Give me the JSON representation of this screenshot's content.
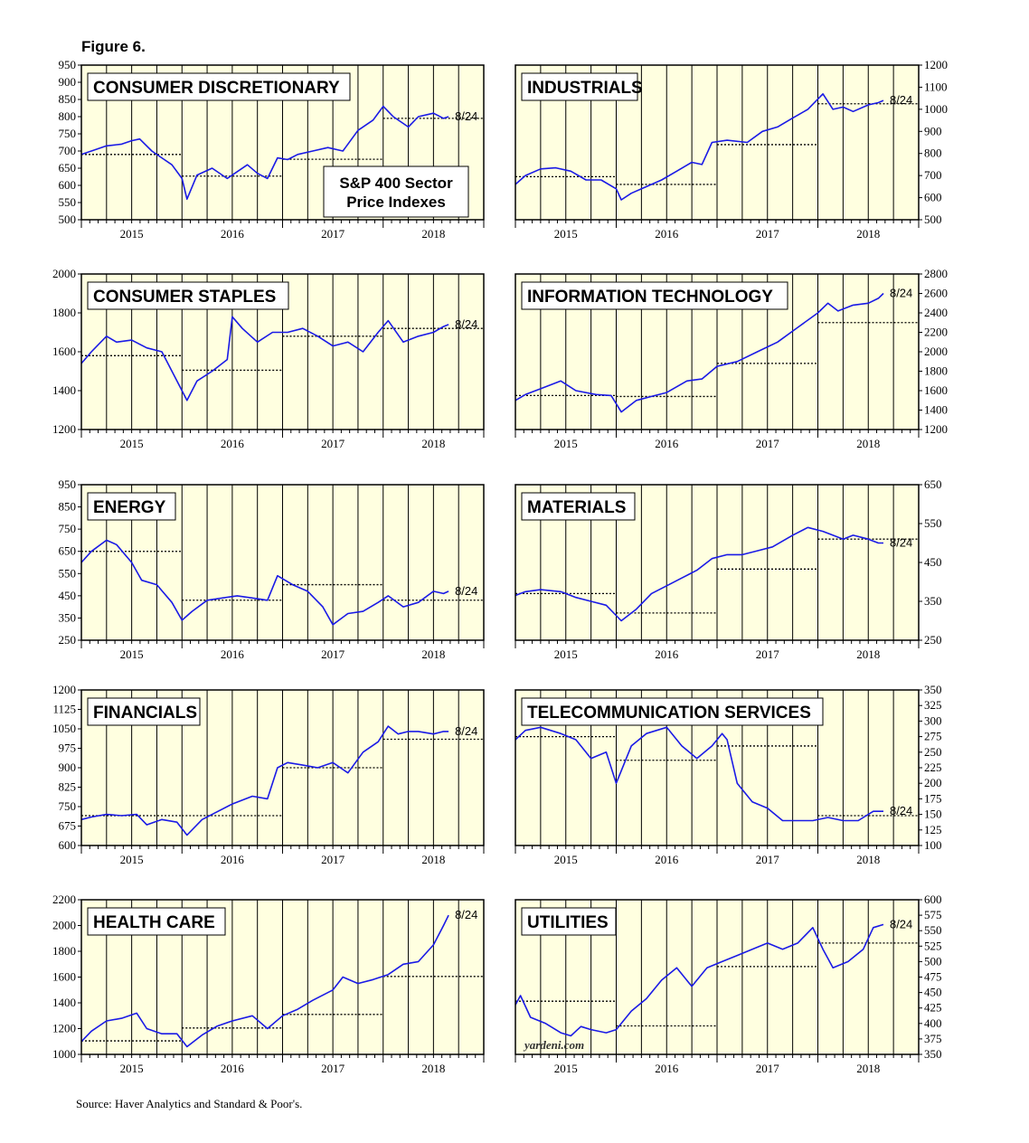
{
  "figure_title": "Figure 6.",
  "source_note": "Source: Haver Analytics and Standard & Poor's.",
  "colors": {
    "line": "#1a1ae6",
    "plot_bg": "#ffffe0",
    "frame": "#000000",
    "dotted": "#000000"
  },
  "chart_data": [
    {
      "type": "line",
      "title": "CONSUMER DISCRETIONARY",
      "annotation": "S&P 400 Sector Price Indexes",
      "axis_side": "left",
      "ylim": [
        500,
        950
      ],
      "yticks": [
        500,
        550,
        600,
        650,
        700,
        750,
        800,
        850,
        900,
        950
      ],
      "x_tick_labels": [
        "2015",
        "2016",
        "2017",
        "2018"
      ],
      "end_label": "8/24",
      "xlim": [
        2014.5,
        2018.5
      ],
      "series": [
        {
          "x": [
            2014.5,
            2014.6,
            2014.75,
            2014.9,
            2015.0,
            2015.08,
            2015.2,
            2015.3,
            2015.4,
            2015.5,
            2015.55,
            2015.65,
            2015.8,
            2015.95,
            2016.05,
            2016.15,
            2016.25,
            2016.35,
            2016.45,
            2016.55,
            2016.65,
            2016.8,
            2016.95,
            2017.1,
            2017.25,
            2017.4,
            2017.5,
            2017.6,
            2017.75,
            2017.85,
            2018.0,
            2018.1,
            2018.15
          ],
          "y": [
            690,
            700,
            715,
            720,
            730,
            735,
            700,
            680,
            660,
            620,
            560,
            630,
            650,
            620,
            640,
            660,
            635,
            620,
            680,
            675,
            690,
            700,
            710,
            700,
            760,
            790,
            830,
            800,
            770,
            800,
            810,
            795,
            800
          ]
        }
      ],
      "yearly_avgs": [
        {
          "year": "2015",
          "avg": 690
        },
        {
          "year": "2016",
          "avg": 627
        },
        {
          "year": "2017",
          "avg": 676
        },
        {
          "year": "2018",
          "avg": 795
        }
      ]
    },
    {
      "type": "line",
      "title": "INDUSTRIALS",
      "axis_side": "right",
      "ylim": [
        500,
        1200
      ],
      "yticks": [
        500,
        600,
        700,
        800,
        900,
        1000,
        1100,
        1200
      ],
      "x_tick_labels": [
        "2015",
        "2016",
        "2017",
        "2018"
      ],
      "end_label": "8/24",
      "xlim": [
        2014.5,
        2018.5
      ],
      "series": [
        {
          "x": [
            2014.5,
            2014.6,
            2014.75,
            2014.9,
            2015.05,
            2015.2,
            2015.35,
            2015.5,
            2015.55,
            2015.65,
            2015.8,
            2015.95,
            2016.1,
            2016.25,
            2016.35,
            2016.45,
            2016.6,
            2016.8,
            2016.95,
            2017.1,
            2017.25,
            2017.4,
            2017.55,
            2017.65,
            2017.75,
            2017.85,
            2018.0,
            2018.1,
            2018.15
          ],
          "y": [
            660,
            700,
            730,
            735,
            720,
            680,
            680,
            640,
            590,
            620,
            650,
            680,
            720,
            760,
            750,
            850,
            860,
            850,
            900,
            920,
            960,
            1000,
            1070,
            1000,
            1010,
            990,
            1020,
            1030,
            1040
          ]
        }
      ],
      "yearly_avgs": [
        {
          "year": "2015",
          "avg": 695
        },
        {
          "year": "2016",
          "avg": 660
        },
        {
          "year": "2017",
          "avg": 840
        },
        {
          "year": "2018",
          "avg": 1025
        }
      ]
    },
    {
      "type": "line",
      "title": "CONSUMER STAPLES",
      "axis_side": "left",
      "ylim": [
        1200,
        2000
      ],
      "yticks": [
        1200,
        1400,
        1600,
        1800,
        2000
      ],
      "x_tick_labels": [
        "2015",
        "2016",
        "2017",
        "2018"
      ],
      "end_label": "8/24",
      "xlim": [
        2014.5,
        2018.5
      ],
      "series": [
        {
          "x": [
            2014.5,
            2014.6,
            2014.75,
            2014.85,
            2015.0,
            2015.15,
            2015.3,
            2015.45,
            2015.55,
            2015.65,
            2015.8,
            2015.95,
            2016.0,
            2016.1,
            2016.25,
            2016.4,
            2016.55,
            2016.7,
            2016.85,
            2017.0,
            2017.15,
            2017.3,
            2017.45,
            2017.55,
            2017.7,
            2017.85,
            2018.0,
            2018.1,
            2018.15
          ],
          "y": [
            1540,
            1600,
            1680,
            1650,
            1660,
            1620,
            1600,
            1450,
            1350,
            1450,
            1500,
            1560,
            1780,
            1720,
            1650,
            1700,
            1700,
            1720,
            1680,
            1630,
            1650,
            1600,
            1700,
            1760,
            1650,
            1680,
            1700,
            1730,
            1740
          ]
        }
      ],
      "yearly_avgs": [
        {
          "year": "2015",
          "avg": 1580
        },
        {
          "year": "2016",
          "avg": 1505
        },
        {
          "year": "2017",
          "avg": 1680
        },
        {
          "year": "2018",
          "avg": 1720
        }
      ]
    },
    {
      "type": "line",
      "title": "INFORMATION TECHNOLOGY",
      "axis_side": "right",
      "ylim": [
        1200,
        2800
      ],
      "yticks": [
        1200,
        1400,
        1600,
        1800,
        2000,
        2200,
        2400,
        2600,
        2800
      ],
      "x_tick_labels": [
        "2015",
        "2016",
        "2017",
        "2018"
      ],
      "end_label": "8/24",
      "xlim": [
        2014.5,
        2018.5
      ],
      "series": [
        {
          "x": [
            2014.5,
            2014.6,
            2014.75,
            2014.95,
            2015.1,
            2015.3,
            2015.45,
            2015.55,
            2015.7,
            2015.85,
            2016.0,
            2016.2,
            2016.35,
            2016.5,
            2016.7,
            2016.9,
            2017.1,
            2017.3,
            2017.5,
            2017.6,
            2017.7,
            2017.85,
            2018.0,
            2018.1,
            2018.15
          ],
          "y": [
            1500,
            1560,
            1620,
            1700,
            1600,
            1560,
            1550,
            1380,
            1500,
            1540,
            1580,
            1700,
            1720,
            1850,
            1900,
            2000,
            2100,
            2250,
            2400,
            2500,
            2420,
            2480,
            2500,
            2550,
            2600
          ]
        }
      ],
      "yearly_avgs": [
        {
          "year": "2015",
          "avg": 1550
        },
        {
          "year": "2016",
          "avg": 1540
        },
        {
          "year": "2017",
          "avg": 1880
        },
        {
          "year": "2018",
          "avg": 2300
        }
      ]
    },
    {
      "type": "line",
      "title": "ENERGY",
      "axis_side": "left",
      "ylim": [
        250,
        950
      ],
      "yticks": [
        250,
        350,
        450,
        550,
        650,
        750,
        850,
        950
      ],
      "x_tick_labels": [
        "2015",
        "2016",
        "2017",
        "2018"
      ],
      "end_label": "8/24",
      "xlim": [
        2014.5,
        2018.5
      ],
      "series": [
        {
          "x": [
            2014.5,
            2014.6,
            2014.75,
            2014.85,
            2015.0,
            2015.1,
            2015.25,
            2015.4,
            2015.5,
            2015.6,
            2015.75,
            2015.9,
            2016.05,
            2016.2,
            2016.35,
            2016.45,
            2016.6,
            2016.75,
            2016.9,
            2017.0,
            2017.15,
            2017.3,
            2017.45,
            2017.55,
            2017.7,
            2017.85,
            2018.0,
            2018.1,
            2018.15
          ],
          "y": [
            600,
            650,
            700,
            680,
            600,
            520,
            500,
            420,
            340,
            380,
            430,
            440,
            450,
            440,
            430,
            540,
            500,
            470,
            400,
            320,
            370,
            380,
            420,
            450,
            400,
            420,
            470,
            460,
            470
          ]
        }
      ],
      "yearly_avgs": [
        {
          "year": "2015",
          "avg": 650
        },
        {
          "year": "2016",
          "avg": 430
        },
        {
          "year": "2017",
          "avg": 500
        },
        {
          "year": "2018",
          "avg": 430
        }
      ]
    },
    {
      "type": "line",
      "title": "MATERIALS",
      "axis_side": "right",
      "ylim": [
        250,
        650
      ],
      "yticks": [
        250,
        350,
        450,
        550,
        650
      ],
      "x_tick_labels": [
        "2015",
        "2016",
        "2017",
        "2018"
      ],
      "end_label": "8/24",
      "xlim": [
        2014.5,
        2018.5
      ],
      "series": [
        {
          "x": [
            2014.5,
            2014.6,
            2014.75,
            2014.95,
            2015.1,
            2015.25,
            2015.4,
            2015.55,
            2015.7,
            2015.85,
            2016.0,
            2016.15,
            2016.3,
            2016.45,
            2016.6,
            2016.75,
            2016.9,
            2017.05,
            2017.25,
            2017.4,
            2017.55,
            2017.65,
            2017.75,
            2017.85,
            2018.0,
            2018.1,
            2018.15
          ],
          "y": [
            365,
            375,
            380,
            375,
            360,
            350,
            340,
            300,
            330,
            370,
            390,
            410,
            430,
            460,
            470,
            470,
            480,
            490,
            520,
            540,
            530,
            520,
            510,
            520,
            510,
            500,
            500
          ]
        }
      ],
      "yearly_avgs": [
        {
          "year": "2015",
          "avg": 370
        },
        {
          "year": "2016",
          "avg": 320
        },
        {
          "year": "2017",
          "avg": 433
        },
        {
          "year": "2018",
          "avg": 510
        }
      ]
    },
    {
      "type": "line",
      "title": "FINANCIALS",
      "axis_side": "left",
      "ylim": [
        600,
        1200
      ],
      "yticks": [
        600,
        675,
        750,
        825,
        900,
        975,
        1050,
        1125,
        1200
      ],
      "x_tick_labels": [
        "2015",
        "2016",
        "2017",
        "2018"
      ],
      "end_label": "8/24",
      "xlim": [
        2014.5,
        2018.5
      ],
      "series": [
        {
          "x": [
            2014.5,
            2014.6,
            2014.75,
            2014.9,
            2015.05,
            2015.15,
            2015.3,
            2015.45,
            2015.55,
            2015.7,
            2015.85,
            2016.0,
            2016.2,
            2016.35,
            2016.45,
            2016.55,
            2016.7,
            2016.85,
            2017.0,
            2017.15,
            2017.3,
            2017.45,
            2017.55,
            2017.65,
            2017.75,
            2017.85,
            2018.0,
            2018.1,
            2018.15
          ],
          "y": [
            700,
            710,
            720,
            715,
            720,
            680,
            700,
            690,
            640,
            700,
            730,
            760,
            790,
            780,
            900,
            920,
            910,
            900,
            920,
            880,
            960,
            1000,
            1060,
            1030,
            1040,
            1040,
            1030,
            1040,
            1040
          ]
        }
      ],
      "yearly_avgs": [
        {
          "year": "2015",
          "avg": 715
        },
        {
          "year": "2016",
          "avg": 715
        },
        {
          "year": "2017",
          "avg": 900
        },
        {
          "year": "2018",
          "avg": 1010
        }
      ]
    },
    {
      "type": "line",
      "title": "TELECOMMUNICATION SERVICES",
      "axis_side": "right",
      "ylim": [
        100,
        350
      ],
      "yticks": [
        100,
        125,
        150,
        175,
        200,
        225,
        250,
        275,
        300,
        325,
        350
      ],
      "x_tick_labels": [
        "2015",
        "2016",
        "2017",
        "2018"
      ],
      "end_label": "8/24",
      "xlim": [
        2014.5,
        2018.5
      ],
      "series": [
        {
          "x": [
            2014.5,
            2014.6,
            2014.75,
            2014.95,
            2015.1,
            2015.25,
            2015.4,
            2015.5,
            2015.65,
            2015.8,
            2016.0,
            2016.15,
            2016.3,
            2016.45,
            2016.55,
            2016.6,
            2016.7,
            2016.85,
            2017.0,
            2017.15,
            2017.3,
            2017.45,
            2017.6,
            2017.75,
            2017.9,
            2018.05,
            2018.15
          ],
          "y": [
            270,
            285,
            290,
            280,
            270,
            240,
            250,
            200,
            260,
            280,
            290,
            260,
            240,
            260,
            280,
            270,
            200,
            170,
            160,
            140,
            140,
            140,
            145,
            140,
            140,
            155,
            155
          ]
        }
      ],
      "yearly_avgs": [
        {
          "year": "2015",
          "avg": 275
        },
        {
          "year": "2016",
          "avg": 237
        },
        {
          "year": "2017",
          "avg": 260
        },
        {
          "year": "2018",
          "avg": 148
        }
      ]
    },
    {
      "type": "line",
      "title": "HEALTH CARE",
      "axis_side": "left",
      "ylim": [
        1000,
        2200
      ],
      "yticks": [
        1000,
        1200,
        1400,
        1600,
        1800,
        2000,
        2200
      ],
      "x_tick_labels": [
        "2015",
        "2016",
        "2017",
        "2018"
      ],
      "end_label": "8/24",
      "xlim": [
        2014.5,
        2018.5
      ],
      "series": [
        {
          "x": [
            2014.5,
            2014.6,
            2014.75,
            2014.9,
            2015.05,
            2015.15,
            2015.3,
            2015.45,
            2015.55,
            2015.7,
            2015.85,
            2016.0,
            2016.2,
            2016.35,
            2016.5,
            2016.65,
            2016.8,
            2017.0,
            2017.1,
            2017.25,
            2017.4,
            2017.55,
            2017.7,
            2017.85,
            2018.0,
            2018.1,
            2018.15
          ],
          "y": [
            1100,
            1180,
            1260,
            1280,
            1320,
            1200,
            1160,
            1160,
            1060,
            1150,
            1220,
            1260,
            1300,
            1200,
            1300,
            1350,
            1420,
            1500,
            1600,
            1550,
            1580,
            1620,
            1700,
            1720,
            1850,
            2000,
            2080
          ]
        }
      ],
      "yearly_avgs": [
        {
          "year": "2015",
          "avg": 1105
        },
        {
          "year": "2016",
          "avg": 1205
        },
        {
          "year": "2017",
          "avg": 1310
        },
        {
          "year": "2018",
          "avg": 1605
        }
      ]
    },
    {
      "type": "line",
      "title": "UTILITIES",
      "watermark": "yardeni.com",
      "axis_side": "right",
      "ylim": [
        350,
        600
      ],
      "yticks": [
        350,
        375,
        400,
        425,
        450,
        475,
        500,
        525,
        550,
        575,
        600
      ],
      "x_tick_labels": [
        "2015",
        "2016",
        "2017",
        "2018"
      ],
      "end_label": "8/24",
      "xlim": [
        2014.5,
        2018.5
      ],
      "series": [
        {
          "x": [
            2014.5,
            2014.55,
            2014.65,
            2014.8,
            2014.95,
            2015.05,
            2015.15,
            2015.25,
            2015.4,
            2015.5,
            2015.65,
            2015.8,
            2015.95,
            2016.1,
            2016.25,
            2016.4,
            2016.55,
            2016.7,
            2016.85,
            2017.0,
            2017.15,
            2017.3,
            2017.45,
            2017.55,
            2017.65,
            2017.8,
            2017.95,
            2018.05,
            2018.15
          ],
          "y": [
            430,
            445,
            410,
            400,
            385,
            380,
            395,
            390,
            385,
            390,
            420,
            440,
            470,
            490,
            460,
            490,
            500,
            510,
            520,
            530,
            520,
            530,
            555,
            520,
            490,
            500,
            520,
            555,
            560
          ]
        }
      ],
      "yearly_avgs": [
        {
          "year": "2015",
          "avg": 436
        },
        {
          "year": "2016",
          "avg": 396
        },
        {
          "year": "2017",
          "avg": 492
        },
        {
          "year": "2018",
          "avg": 530
        }
      ]
    }
  ]
}
